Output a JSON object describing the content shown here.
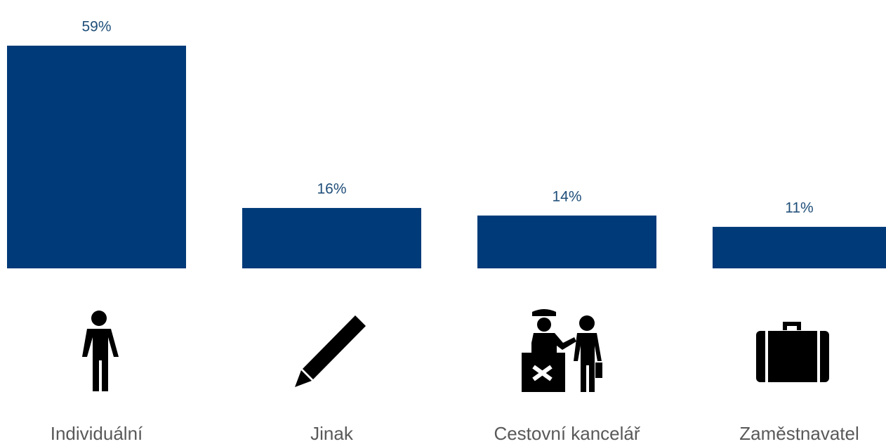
{
  "chart_data": {
    "type": "bar",
    "categories": [
      "Individuální",
      "Jinak",
      "Cestovní kancelář",
      "Zaměstnavatel"
    ],
    "values": [
      59,
      16,
      14,
      11
    ],
    "value_labels": [
      "59%",
      "16%",
      "14%",
      "11%"
    ],
    "color": "#003a78"
  }
}
